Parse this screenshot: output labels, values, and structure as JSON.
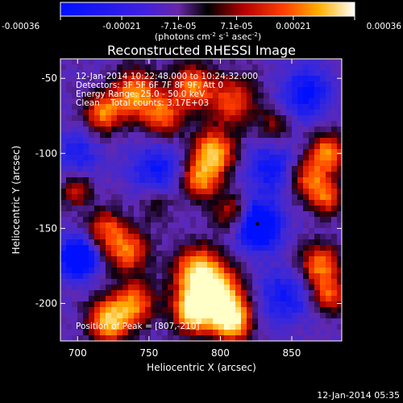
{
  "chart_data": {
    "type": "heatmap",
    "title": "Reconstructed RHESSI Image",
    "xlabel": "Heliocentric X (arcsec)",
    "ylabel": "Heliocentric Y (arcsec)",
    "xlim": [
      688,
      885
    ],
    "ylim": [
      -225,
      -37
    ],
    "x_ticks": [
      700,
      750,
      800,
      850
    ],
    "y_ticks": [
      -50,
      -100,
      -150,
      -200
    ],
    "colorbar": {
      "range": [
        -0.00036,
        0.00036
      ],
      "ticks": [
        {
          "value": -0.00036,
          "label": "-0.00036"
        },
        {
          "value": -0.00021,
          "label": "-0.00021"
        },
        {
          "value": -7.1e-05,
          "label": "-7.1e-05"
        },
        {
          "value": 7.1e-05,
          "label": "7.1e-05"
        },
        {
          "value": 0.00021,
          "label": "0.00021"
        },
        {
          "value": 0.00036,
          "label": "0.00036"
        }
      ],
      "unit_main": "(photons cm",
      "unit_exp1": "-2",
      "unit_mid": " s",
      "unit_exp2": "-1",
      "unit_tail": " asec",
      "unit_exp3": "-2",
      "unit_close": ")"
    },
    "annotations": [
      "12-Jan-2014 10:22:48.000 to 10:24:32.000",
      "Detectors: 3F 5F 6F 7F 8F 9F, Att 0",
      "Energy Range: 25.0 - 50.0 keV",
      "Clean    Total counts: 3.17E+03"
    ],
    "peak_label": "Position of Peak = [807,-210]",
    "peak": {
      "x": 807,
      "y": -210
    },
    "marker": {
      "x": 826,
      "y": -147
    },
    "hotspots": [
      {
        "x": 718,
        "y": -73,
        "a": 1.0,
        "s": 9
      },
      {
        "x": 740,
        "y": -60,
        "a": 1.1,
        "s": 11
      },
      {
        "x": 760,
        "y": -75,
        "a": 0.9,
        "s": 10
      },
      {
        "x": 780,
        "y": -55,
        "a": 1.0,
        "s": 10
      },
      {
        "x": 808,
        "y": -65,
        "a": 0.85,
        "s": 12
      },
      {
        "x": 795,
        "y": -100,
        "a": 1.3,
        "s": 10
      },
      {
        "x": 786,
        "y": -118,
        "a": 1.0,
        "s": 9
      },
      {
        "x": 808,
        "y": -140,
        "a": 0.7,
        "s": 9
      },
      {
        "x": 875,
        "y": -100,
        "a": 1.1,
        "s": 9
      },
      {
        "x": 862,
        "y": -118,
        "a": 0.9,
        "s": 9
      },
      {
        "x": 875,
        "y": -130,
        "a": 0.8,
        "s": 8
      },
      {
        "x": 700,
        "y": -125,
        "a": 0.7,
        "s": 7
      },
      {
        "x": 735,
        "y": -165,
        "a": 1.0,
        "s": 10
      },
      {
        "x": 720,
        "y": -150,
        "a": 0.8,
        "s": 9
      },
      {
        "x": 785,
        "y": -180,
        "a": 1.4,
        "s": 12
      },
      {
        "x": 800,
        "y": -195,
        "a": 1.3,
        "s": 11
      },
      {
        "x": 782,
        "y": -205,
        "a": 1.6,
        "s": 10
      },
      {
        "x": 808,
        "y": -212,
        "a": 1.5,
        "s": 9
      },
      {
        "x": 722,
        "y": -212,
        "a": 1.3,
        "s": 10
      },
      {
        "x": 740,
        "y": -200,
        "a": 1.0,
        "s": 10
      },
      {
        "x": 870,
        "y": -175,
        "a": 1.0,
        "s": 10
      },
      {
        "x": 877,
        "y": -195,
        "a": 0.8,
        "s": 8
      },
      {
        "x": 838,
        "y": -82,
        "a": 0.5,
        "s": 8
      },
      {
        "x": 755,
        "y": -135,
        "a": 0.35,
        "s": 8
      }
    ],
    "coldspots": [
      {
        "x": 826,
        "y": -148,
        "a": 1.2,
        "s": 11
      },
      {
        "x": 700,
        "y": -170,
        "a": 1.2,
        "s": 9
      },
      {
        "x": 755,
        "y": -110,
        "a": 0.6,
        "s": 12
      },
      {
        "x": 835,
        "y": -110,
        "a": 0.6,
        "s": 12
      },
      {
        "x": 845,
        "y": -195,
        "a": 0.6,
        "s": 12
      },
      {
        "x": 860,
        "y": -60,
        "a": 0.7,
        "s": 12
      },
      {
        "x": 700,
        "y": -100,
        "a": 0.5,
        "s": 10
      }
    ]
  },
  "footer": {
    "date": "12-Jan-2014 05:35"
  }
}
